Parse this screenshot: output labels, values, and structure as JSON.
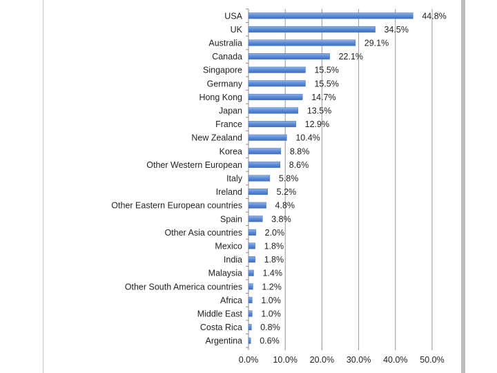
{
  "chart_data": {
    "type": "bar",
    "orientation": "horizontal",
    "title": "",
    "xlabel": "",
    "ylabel": "",
    "xlim": [
      0,
      50
    ],
    "x_ticks": [
      "0.0%",
      "10.0%",
      "20.0%",
      "30.0%",
      "40.0%",
      "50.0%"
    ],
    "grid": true,
    "legend": "none",
    "bar_color": "#5b8bd6",
    "categories": [
      "USA",
      "UK",
      "Australia",
      "Canada",
      "Singapore",
      "Germany",
      "Hong Kong",
      "Japan",
      "France",
      "New Zealand",
      "Korea",
      "Other Western European",
      "Italy",
      "Ireland",
      "Other Eastern European countries",
      "Spain",
      "Other Asia countries",
      "Mexico",
      "India",
      "Malaysia",
      "Other South America countries",
      "Africa",
      "Middle East",
      "Costa Rica",
      "Argentina"
    ],
    "values": [
      44.8,
      34.5,
      29.1,
      22.1,
      15.5,
      15.5,
      14.7,
      13.5,
      12.9,
      10.4,
      8.8,
      8.6,
      5.8,
      5.2,
      4.8,
      3.8,
      2.0,
      1.8,
      1.8,
      1.4,
      1.2,
      1.0,
      1.0,
      0.8,
      0.6
    ],
    "value_labels": [
      "44.8%",
      "34.5%",
      "29.1%",
      "22.1%",
      "15.5%",
      "15.5%",
      "14.7%",
      "13.5%",
      "12.9%",
      "10.4%",
      "8.8%",
      "8.6%",
      "5.8%",
      "5.2%",
      "4.8%",
      "3.8%",
      "2.0%",
      "1.8%",
      "1.8%",
      "1.4%",
      "1.2%",
      "1.0%",
      "1.0%",
      "0.8%",
      "0.6%"
    ]
  }
}
